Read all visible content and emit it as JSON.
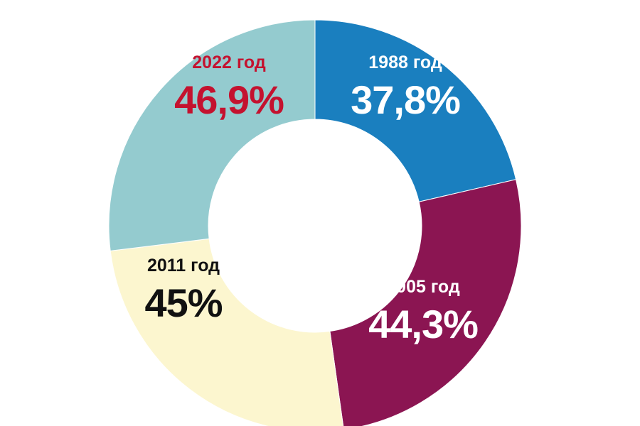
{
  "chart_data": {
    "type": "pie",
    "title": "",
    "series": [
      {
        "values": [
          37.8,
          44.3,
          45,
          46.9
        ],
        "categories": [
          "1988 год",
          "2005 год",
          "2011 год",
          "2022 год"
        ],
        "value_labels": [
          "37,8%",
          "44,3%",
          "45%",
          "46,9%"
        ],
        "colors": [
          "#1a7fbf",
          "#8b1552",
          "#fcf6cf",
          "#94cbcf"
        ],
        "label_colors": [
          "#ffffff",
          "#ffffff",
          "#111111",
          "#c4122f"
        ]
      }
    ],
    "style": "donut",
    "legend": "none"
  }
}
